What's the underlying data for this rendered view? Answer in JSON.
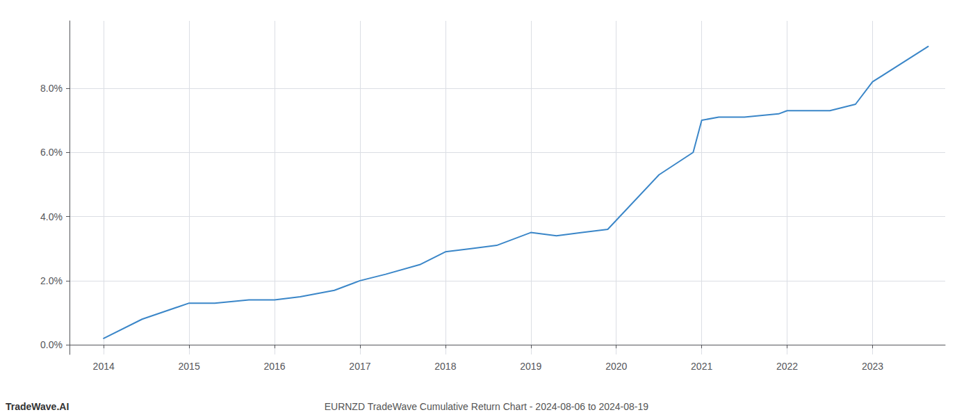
{
  "chart_data": {
    "type": "line",
    "annotations": [
      "TradeWave.AI",
      "EURNZD TradeWave Cumulative Return Chart - 2024-08-06 to 2024-08-19"
    ],
    "x": [
      2014.0,
      2014.45,
      2015.0,
      2015.3,
      2015.7,
      2016.0,
      2016.3,
      2016.7,
      2017.0,
      2017.3,
      2017.7,
      2018.0,
      2018.3,
      2018.6,
      2019.0,
      2019.3,
      2019.6,
      2019.9,
      2020.5,
      2020.9,
      2021.0,
      2021.2,
      2021.5,
      2021.9,
      2022.0,
      2022.5,
      2022.8,
      2023.0,
      2023.65
    ],
    "values": [
      0.002,
      0.008,
      0.013,
      0.013,
      0.014,
      0.014,
      0.015,
      0.017,
      0.02,
      0.022,
      0.025,
      0.029,
      0.03,
      0.031,
      0.035,
      0.034,
      0.035,
      0.036,
      0.053,
      0.06,
      0.07,
      0.071,
      0.071,
      0.072,
      0.073,
      0.073,
      0.075,
      0.082,
      0.093
    ],
    "color": "#3a86c8",
    "xlim": [
      2013.6,
      2023.85
    ],
    "ylim": [
      -0.003,
      0.101
    ],
    "xticks": [
      2014,
      2015,
      2016,
      2017,
      2018,
      2019,
      2020,
      2021,
      2022,
      2023
    ],
    "yticks": [
      {
        "value": 0.0,
        "label": "0.0%"
      },
      {
        "value": 0.02,
        "label": "2.0%"
      },
      {
        "value": 0.04,
        "label": "4.0%"
      },
      {
        "value": 0.06,
        "label": "6.0%"
      },
      {
        "value": 0.08,
        "label": "8.0%"
      }
    ],
    "grid": true
  }
}
